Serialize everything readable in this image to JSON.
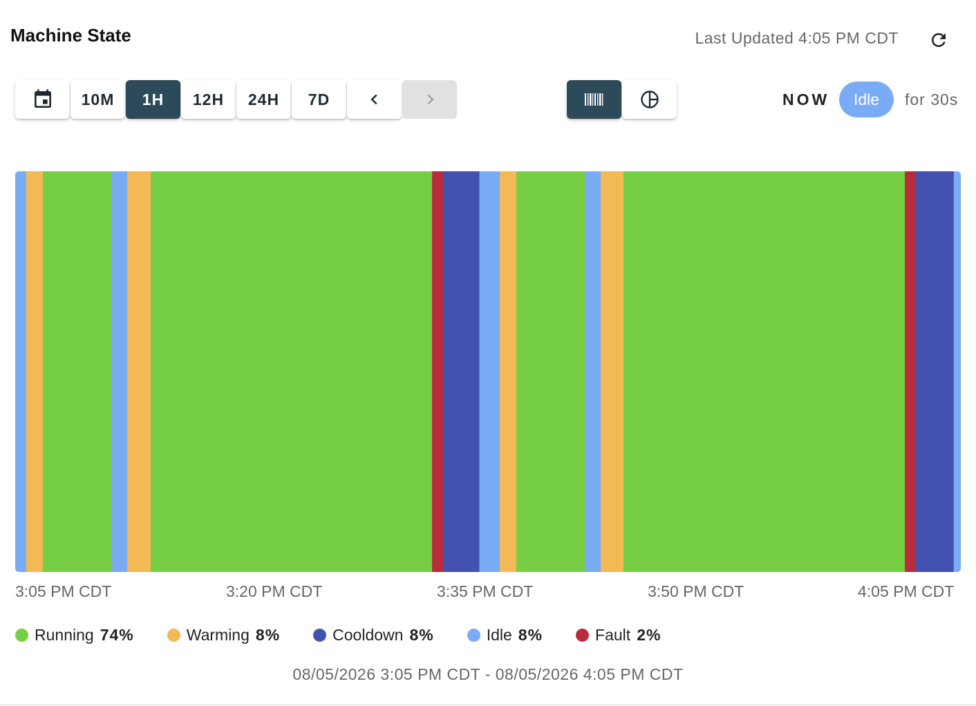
{
  "header": {
    "title": "Machine State",
    "last_updated": "Last Updated 4:05 PM CDT"
  },
  "toolbar": {
    "calendar_icon": "calendar-icon",
    "ranges": [
      {
        "label": "10M",
        "active": false
      },
      {
        "label": "1H",
        "active": true
      },
      {
        "label": "12H",
        "active": false
      },
      {
        "label": "24H",
        "active": false
      },
      {
        "label": "7D",
        "active": false
      }
    ],
    "prev_icon": "chevron-left-icon",
    "next_icon": "chevron-right-icon",
    "next_disabled": true,
    "views": [
      {
        "name": "timeline-view",
        "icon": "barcode-icon",
        "active": true
      },
      {
        "name": "pie-view",
        "icon": "pie-chart-icon",
        "active": false
      }
    ]
  },
  "status": {
    "now_label": "NOW",
    "state": "Idle",
    "duration": "for 30s"
  },
  "colors": {
    "Running": "#76ce44",
    "Warming": "#f2b955",
    "Cooldown": "#4352b0",
    "Idle": "#7aabf5",
    "Fault": "#b92c3d",
    "active_button": "#2c4a5a"
  },
  "chart_data": {
    "type": "timeline",
    "x_range": [
      "3:05 PM CDT",
      "4:05 PM CDT"
    ],
    "x_ticks": [
      "3:05 PM CDT",
      "3:20 PM CDT",
      "3:35 PM CDT",
      "3:50 PM CDT",
      "4:05 PM CDT"
    ],
    "segments": [
      {
        "state": "Idle",
        "start": 0.0,
        "end": 0.7
      },
      {
        "state": "Warming",
        "start": 0.7,
        "end": 1.75
      },
      {
        "state": "Running",
        "start": 1.75,
        "end": 6.1
      },
      {
        "state": "Idle",
        "start": 6.1,
        "end": 7.1
      },
      {
        "state": "Warming",
        "start": 7.1,
        "end": 8.6
      },
      {
        "state": "Running",
        "start": 8.6,
        "end": 26.45
      },
      {
        "state": "Fault",
        "start": 26.45,
        "end": 27.15
      },
      {
        "state": "Cooldown",
        "start": 27.15,
        "end": 29.45
      },
      {
        "state": "Idle",
        "start": 29.45,
        "end": 30.75
      },
      {
        "state": "Warming",
        "start": 30.75,
        "end": 31.8
      },
      {
        "state": "Running",
        "start": 31.8,
        "end": 36.15
      },
      {
        "state": "Idle",
        "start": 36.15,
        "end": 37.15
      },
      {
        "state": "Warming",
        "start": 37.15,
        "end": 38.6
      },
      {
        "state": "Running",
        "start": 38.6,
        "end": 56.45
      },
      {
        "state": "Fault",
        "start": 56.45,
        "end": 57.15
      },
      {
        "state": "Cooldown",
        "start": 57.15,
        "end": 59.55
      },
      {
        "state": "Idle",
        "start": 59.55,
        "end": 60.0
      }
    ],
    "legend": [
      {
        "name": "Running",
        "pct": "74%"
      },
      {
        "name": "Warming",
        "pct": "8%"
      },
      {
        "name": "Cooldown",
        "pct": "8%"
      },
      {
        "name": "Idle",
        "pct": "8%"
      },
      {
        "name": "Fault",
        "pct": "2%"
      }
    ],
    "range_label": "08/05/2026 3:05 PM CDT - 08/05/2026 4:05 PM CDT"
  }
}
